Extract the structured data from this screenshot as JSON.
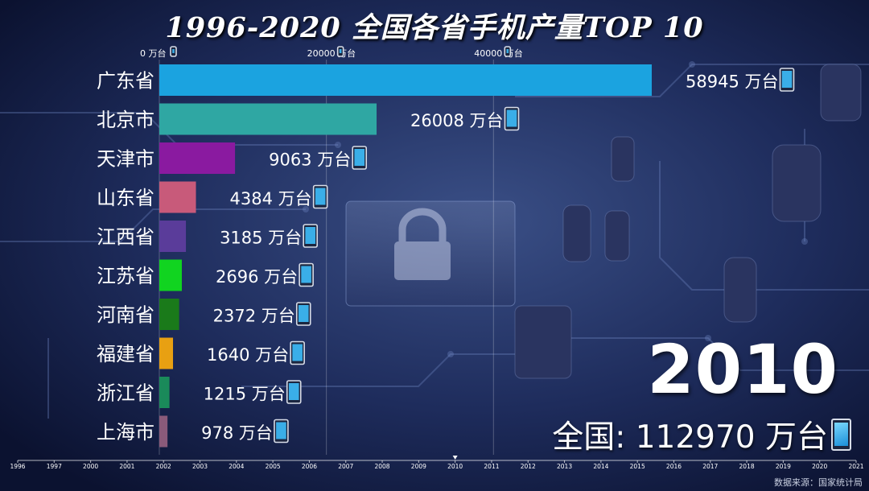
{
  "title": "1996-2020 全国各省手机产量TOP 10",
  "current_year": "2010",
  "total_label": "全国: 112970 万台",
  "unit_suffix": "万台",
  "source": "数据来源：国家统计局",
  "icons": {
    "unit": "mobile-phone-icon"
  },
  "chart_data": {
    "type": "bar",
    "orientation": "horizontal",
    "title": "1996-2020 全国各省手机产量TOP 10",
    "categories": [
      "广东省",
      "北京市",
      "天津市",
      "山东省",
      "江西省",
      "江苏省",
      "河南省",
      "福建省",
      "浙江省",
      "上海市"
    ],
    "values": [
      58945,
      26008,
      9063,
      4384,
      3185,
      2696,
      2372,
      1640,
      1215,
      978
    ],
    "value_labels": [
      "58945 万台",
      "26008 万台",
      "9063 万台",
      "4384 万台",
      "3185 万台",
      "2696 万台",
      "2372 万台",
      "1640 万台",
      "1215 万台",
      "978 万台"
    ],
    "colors": [
      "#1ba3e0",
      "#2fa7a3",
      "#8a1aa0",
      "#c85a7a",
      "#5a3c9a",
      "#11d420",
      "#1a7a1a",
      "#e8a012",
      "#1a8a5a",
      "#8a5a7a"
    ],
    "xlim": [
      0,
      62000
    ],
    "x_ticks": [
      0,
      20000,
      40000
    ],
    "x_tick_labels": [
      "0 万台",
      "20000 万台",
      "40000 万台"
    ],
    "timeline": {
      "years": [
        "1996",
        "1997",
        "2000",
        "2001",
        "2002",
        "2003",
        "2004",
        "2005",
        "2006",
        "2007",
        "2008",
        "2009",
        "2010",
        "2011",
        "2012",
        "2013",
        "2014",
        "2015",
        "2016",
        "2017",
        "2018",
        "2019",
        "2020",
        "2021"
      ],
      "current": "2010"
    }
  }
}
